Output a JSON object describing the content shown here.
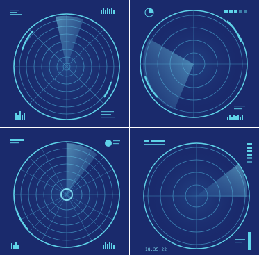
{
  "colors": {
    "panel_bg": "#1a2a6c",
    "accent": "#5fd3e8",
    "ring": "#3e88b8",
    "sweep": "#4fb0d8"
  },
  "panels": [
    {
      "name": "radar-top-left",
      "sweep": "narrow-top-right"
    },
    {
      "name": "radar-top-right",
      "sweep": "left-down"
    },
    {
      "name": "radar-bottom-left",
      "sweep": "narrow-top"
    },
    {
      "name": "radar-bottom-right",
      "sweep": "right-wedge"
    }
  ],
  "labels": {
    "timestamp": "18.35.22"
  }
}
